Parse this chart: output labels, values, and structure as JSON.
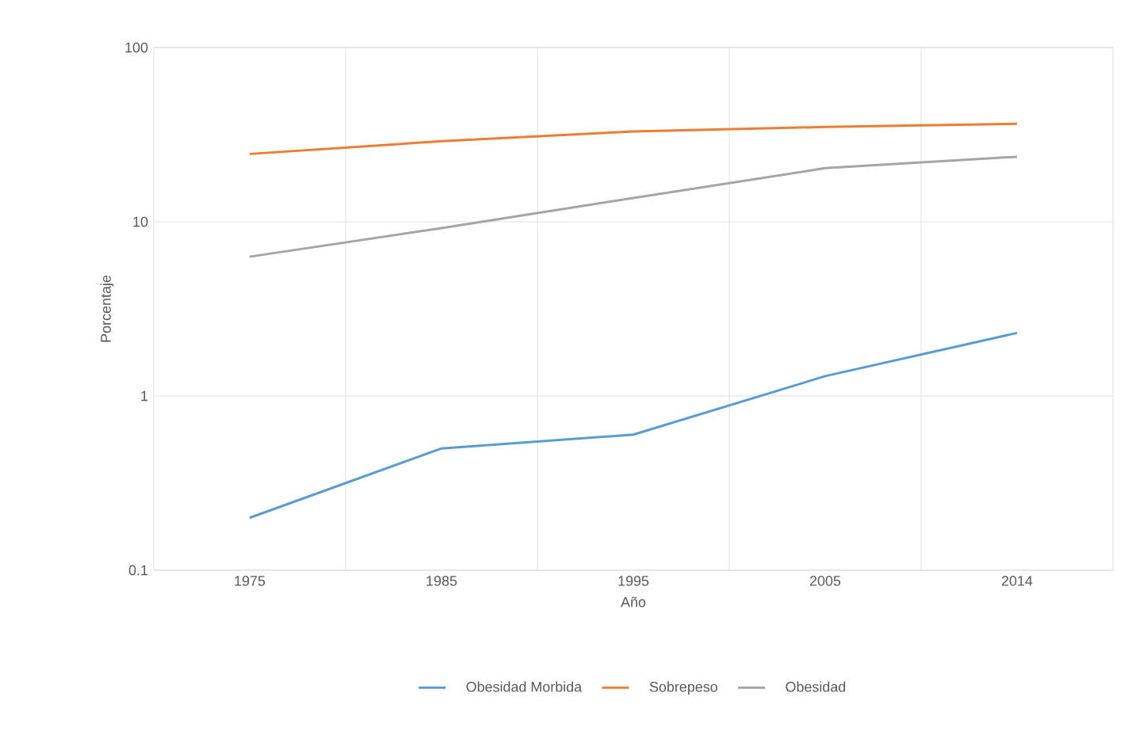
{
  "chart_data": {
    "type": "line",
    "xlabel": "Año",
    "ylabel": "Porcentaje",
    "categories": [
      "1975",
      "1985",
      "1995",
      "2005",
      "2014"
    ],
    "series": [
      {
        "name": "Obesidad Morbida",
        "color": "#5b9bd5",
        "values": [
          0.2,
          0.5,
          0.6,
          1.3,
          2.3
        ]
      },
      {
        "name": "Sobrepeso",
        "color": "#ed7d31",
        "values": [
          24.5,
          29,
          33,
          35,
          36.5
        ]
      },
      {
        "name": "Obesidad",
        "color": "#a5a5a5",
        "values": [
          6.3,
          9.2,
          13.7,
          20.3,
          23.6
        ]
      }
    ],
    "ylim": [
      0.1,
      100
    ],
    "yticks": [
      0.1,
      1,
      10,
      100
    ],
    "log": true,
    "grid": true,
    "legend": "bottom"
  }
}
